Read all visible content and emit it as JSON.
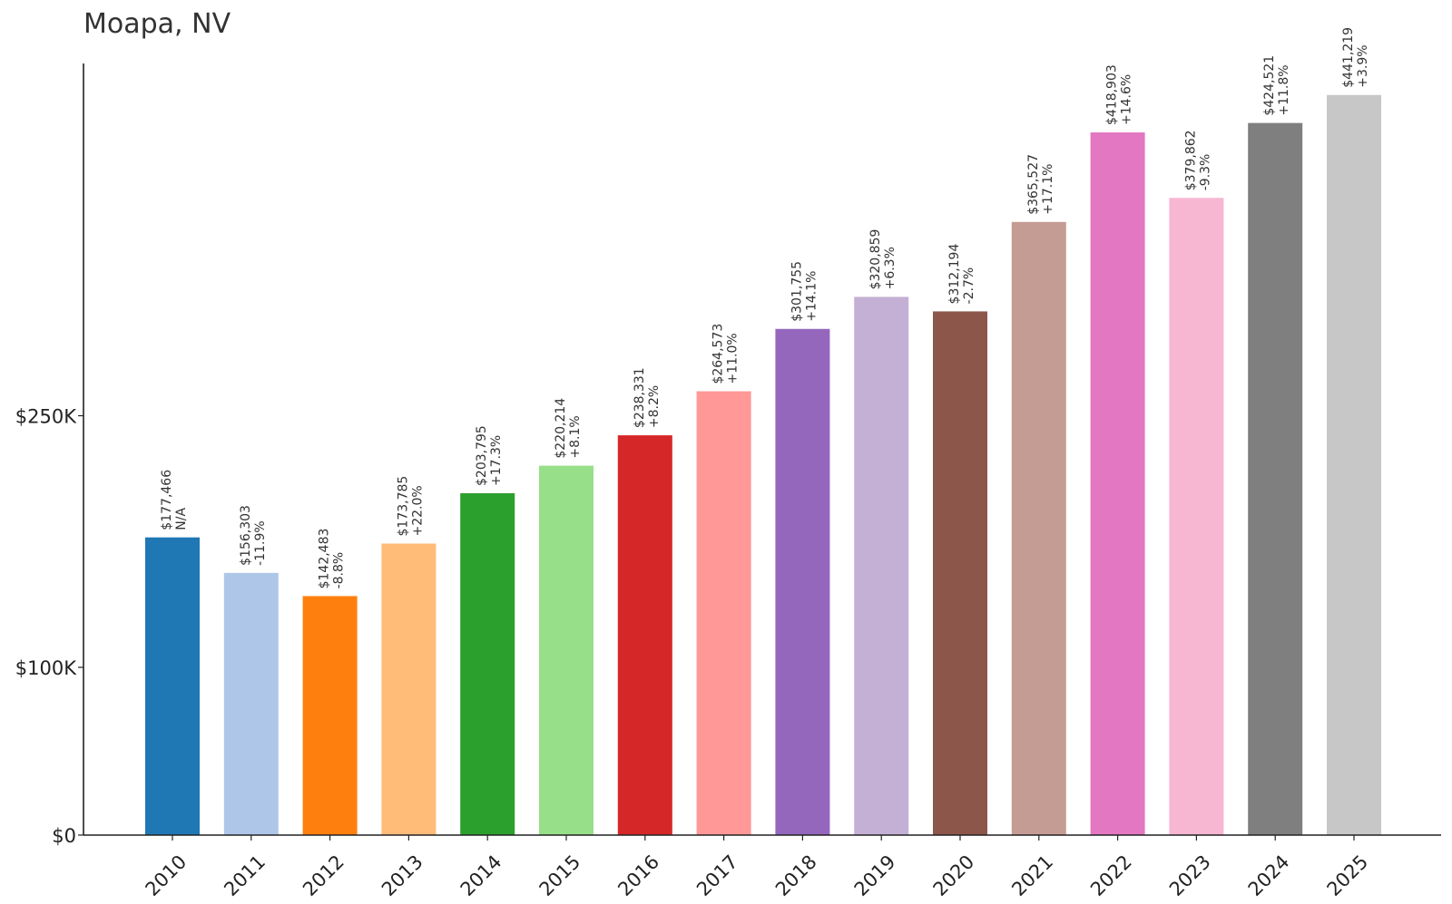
{
  "chart_data": {
    "type": "bar",
    "title": "Moapa, NV",
    "xlabel": "",
    "ylabel": "",
    "ylim": [
      0,
      465000
    ],
    "yticks": [
      {
        "value": 0,
        "label": "$0"
      },
      {
        "value": 100000,
        "label": "$100K"
      },
      {
        "value": 250000,
        "label": "$250K"
      }
    ],
    "categories": [
      "2010",
      "2011",
      "2012",
      "2013",
      "2014",
      "2015",
      "2016",
      "2017",
      "2018",
      "2019",
      "2020",
      "2021",
      "2022",
      "2023",
      "2024",
      "2025"
    ],
    "values": [
      177466,
      156303,
      142483,
      173785,
      203795,
      220214,
      238331,
      264573,
      301755,
      320859,
      312194,
      365527,
      418903,
      379862,
      424521,
      441219
    ],
    "value_labels": [
      "$177,466",
      "$156,303",
      "$142,483",
      "$173,785",
      "$203,795",
      "$220,214",
      "$238,331",
      "$264,573",
      "$301,755",
      "$320,859",
      "$312,194",
      "$365,527",
      "$418,903",
      "$379,862",
      "$424,521",
      "$441,219"
    ],
    "change_labels": [
      "N/A",
      "-11.9%",
      "-8.8%",
      "+22.0%",
      "+17.3%",
      "+8.1%",
      "+8.2%",
      "+11.0%",
      "+14.1%",
      "+6.3%",
      "-2.7%",
      "+17.1%",
      "+14.6%",
      "-9.3%",
      "+11.8%",
      "+3.9%"
    ],
    "colors": [
      "#1f77b4",
      "#aec7e8",
      "#ff7f0e",
      "#ffbb78",
      "#2ca02c",
      "#98df8a",
      "#d62728",
      "#ff9896",
      "#9467bd",
      "#c5b0d5",
      "#8c564b",
      "#c49c94",
      "#e377c2",
      "#f7b6d2",
      "#7f7f7f",
      "#c7c7c7"
    ],
    "grid": false,
    "legend": "none"
  }
}
